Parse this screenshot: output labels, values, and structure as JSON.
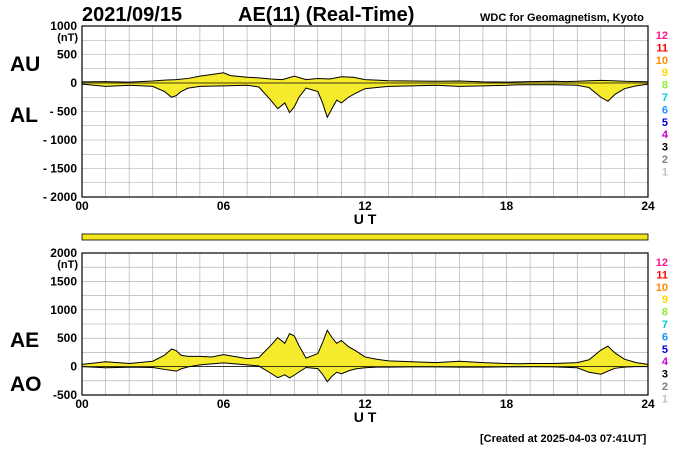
{
  "header": {
    "date": "2021/09/15",
    "title": "AE(11) (Real-Time)",
    "source": "WDC for Geomagnetism, Kyoto"
  },
  "footer": {
    "created": "[Created at 2025-04-03 07:41UT]"
  },
  "colors": {
    "fill": "#f5ea2b",
    "outline": "#000000",
    "grid": "#a6a6a6",
    "bar": "#f2e51c"
  },
  "chart_data": [
    {
      "type": "area",
      "labels": [
        "AU",
        "AL"
      ],
      "xlabel": "U T",
      "xlim": [
        0,
        24
      ],
      "xticks": [
        "00",
        "06",
        "12",
        "18",
        "24"
      ],
      "ylim": [
        -2000,
        1000
      ],
      "yunit": "(nT)",
      "yticks": [
        "1000",
        "500",
        "0",
        "- 500",
        "- 1000",
        "- 1500",
        "- 2000"
      ],
      "series": [
        {
          "name": "AU",
          "x": [
            0,
            1,
            2,
            3,
            3.5,
            4,
            4.5,
            5,
            5.5,
            6,
            6.3,
            7,
            7.5,
            8,
            8.5,
            9,
            9.5,
            10,
            10.5,
            11,
            11.5,
            12,
            13,
            14,
            15,
            16,
            17,
            18,
            19,
            20,
            20.5,
            21,
            21.5,
            22,
            22.5,
            23,
            24
          ],
          "y": [
            20,
            25,
            15,
            35,
            50,
            60,
            80,
            120,
            150,
            180,
            130,
            100,
            90,
            70,
            60,
            120,
            60,
            80,
            70,
            110,
            100,
            60,
            40,
            35,
            30,
            35,
            20,
            15,
            25,
            30,
            25,
            30,
            40,
            45,
            40,
            30,
            20
          ]
        },
        {
          "name": "AL",
          "x": [
            0,
            1,
            2,
            3,
            3.5,
            3.8,
            4,
            4.2,
            4.5,
            5,
            6,
            7,
            7.5,
            8,
            8.3,
            8.6,
            8.8,
            9,
            9.2,
            9.5,
            10,
            10.2,
            10.4,
            10.6,
            10.8,
            11,
            11.3,
            11.6,
            12,
            12.5,
            13,
            14,
            15,
            16,
            17,
            18,
            18.5,
            19,
            20,
            21,
            21.5,
            22,
            22.3,
            22.6,
            23,
            23.5,
            24
          ],
          "y": [
            -20,
            -60,
            -40,
            -60,
            -150,
            -250,
            -220,
            -150,
            -90,
            -60,
            -50,
            -40,
            -70,
            -300,
            -450,
            -350,
            -520,
            -420,
            -250,
            -90,
            -150,
            -350,
            -600,
            -450,
            -300,
            -350,
            -250,
            -180,
            -100,
            -80,
            -60,
            -50,
            -40,
            -60,
            -50,
            -40,
            -30,
            -30,
            -30,
            -40,
            -80,
            -250,
            -320,
            -200,
            -100,
            -50,
            -20
          ]
        }
      ]
    },
    {
      "type": "area",
      "labels": [
        "AE",
        "AO"
      ],
      "xlabel": "U T",
      "xlim": [
        0,
        24
      ],
      "xticks": [
        "00",
        "06",
        "12",
        "18",
        "24"
      ],
      "ylim": [
        -500,
        2000
      ],
      "yunit": "(nT)",
      "yticks": [
        "2000",
        "1500",
        "1000",
        "500",
        "0",
        "-500"
      ],
      "series": [
        {
          "name": "AE",
          "x": [
            0,
            1,
            2,
            3,
            3.5,
            3.8,
            4,
            4.2,
            4.5,
            5,
            5.5,
            6,
            7,
            7.5,
            8,
            8.3,
            8.6,
            8.8,
            9,
            9.2,
            9.5,
            10,
            10.2,
            10.4,
            10.6,
            10.8,
            11,
            11.3,
            11.6,
            12,
            12.5,
            13,
            14,
            15,
            16,
            17,
            18,
            18.5,
            19,
            20,
            21,
            21.5,
            22,
            22.3,
            22.6,
            23,
            23.5,
            24
          ],
          "y": [
            40,
            85,
            55,
            95,
            200,
            310,
            280,
            200,
            180,
            180,
            170,
            210,
            140,
            160,
            370,
            510,
            410,
            580,
            540,
            370,
            150,
            230,
            420,
            640,
            510,
            410,
            460,
            350,
            280,
            170,
            130,
            100,
            85,
            70,
            95,
            70,
            55,
            50,
            55,
            55,
            70,
            120,
            290,
            360,
            240,
            130,
            70,
            40
          ]
        },
        {
          "name": "AO",
          "x": [
            0,
            1,
            2,
            3,
            3.5,
            4,
            4.2,
            4.5,
            5,
            6,
            7,
            7.5,
            8,
            8.3,
            8.6,
            8.8,
            9,
            9.2,
            9.5,
            10,
            10.2,
            10.4,
            10.6,
            10.8,
            11,
            11.3,
            11.6,
            12,
            12.5,
            13,
            14,
            15,
            16,
            17,
            18,
            19,
            20,
            21,
            21.5,
            22,
            22.3,
            22.6,
            23,
            23.5,
            24
          ],
          "y": [
            0,
            -20,
            -10,
            -15,
            -50,
            -80,
            -40,
            -5,
            30,
            65,
            30,
            10,
            -115,
            -195,
            -145,
            -200,
            -150,
            -95,
            -15,
            -35,
            -135,
            -265,
            -170,
            -100,
            -125,
            -75,
            -40,
            -20,
            -10,
            -10,
            -5,
            -5,
            -10,
            -10,
            -5,
            -3,
            -5,
            -20,
            -100,
            -135,
            -80,
            -30,
            -10,
            0,
            0
          ]
        }
      ]
    }
  ],
  "kp_scale": {
    "labels": [
      "12",
      "11",
      "10",
      "9",
      "8",
      "7",
      "6",
      "5",
      "4",
      "3",
      "2",
      "1"
    ],
    "colors": [
      "#ff1493",
      "#ff0000",
      "#ff8c00",
      "#ffd700",
      "#90ee30",
      "#00ced1",
      "#1e90ff",
      "#0000cd",
      "#cc00cc",
      "#000000",
      "#808080",
      "#c0c0c0"
    ]
  },
  "coverage_bar": {
    "color": "#f2e51c"
  }
}
